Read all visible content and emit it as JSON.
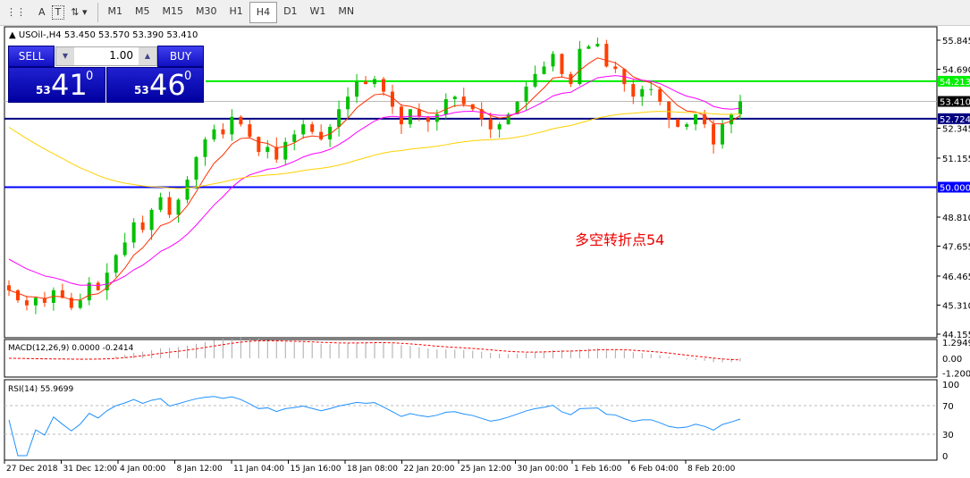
{
  "toolbar": {
    "buttons": [
      "A",
      "T"
    ],
    "timeframes": [
      "M1",
      "M5",
      "M15",
      "M30",
      "H1",
      "H4",
      "D1",
      "W1",
      "MN"
    ],
    "active": "H4"
  },
  "header": {
    "symbol_line": "USOil-,H4  53.450 53.570 53.390 53.410"
  },
  "trade_panel": {
    "sell_label": "SELL",
    "buy_label": "BUY",
    "lot": "1.00",
    "sell_big": "53",
    "sell_main": "41",
    "sell_sup": "0",
    "buy_big": "53",
    "buy_main": "46",
    "buy_sup": "0"
  },
  "annotation": "多空转折点54",
  "price_axis": [
    "55.845",
    "54.690",
    "52.345",
    "51.155",
    "48.810",
    "47.655",
    "46.465",
    "45.310",
    "44.155"
  ],
  "levels": [
    {
      "value": 54.213,
      "label": "54.213",
      "color": "#00ee00"
    },
    {
      "value": 53.41,
      "label": "53.410",
      "color": "#000000"
    },
    {
      "value": 52.724,
      "label": "52.724",
      "color": "#000080"
    },
    {
      "value": 50.0,
      "label": "50.000",
      "color": "#0000ff"
    }
  ],
  "macd": {
    "label": "MACD(12,26,9) 0.0000 -0.2414",
    "axis": [
      "1.2949",
      "0.00",
      "-1.2005"
    ]
  },
  "rsi": {
    "label": "RSI(14) 55.9699",
    "axis": [
      "100",
      "70",
      "30",
      "0"
    ]
  },
  "time_axis": [
    "27 Dec 2018",
    "31 Dec 12:00",
    "4 Jan 00:00",
    "8 Jan 12:00",
    "11 Jan 04:00",
    "15 Jan 16:00",
    "18 Jan 08:00",
    "22 Jan 20:00",
    "25 Jan 12:00",
    "30 Jan 00:00",
    "1 Feb 16:00",
    "6 Feb 04:00",
    "8 Feb 20:00"
  ],
  "colors": {
    "bull": "#00c000",
    "bear": "#ff4000",
    "ma_fast": "#ff3000",
    "ma_mid": "#ff00ff",
    "ma_slow": "#ffd000",
    "rsi": "#1e90ff",
    "macd_signal": "#ff0000"
  },
  "chart_data": {
    "type": "candlestick",
    "ylim": [
      44.155,
      55.845
    ],
    "close": [
      45.9,
      45.5,
      45.3,
      45.6,
      45.4,
      45.9,
      45.6,
      45.2,
      45.5,
      46.2,
      45.9,
      46.6,
      47.3,
      47.8,
      48.6,
      48.3,
      49.1,
      49.6,
      48.9,
      49.5,
      50.3,
      51.2,
      51.9,
      52.3,
      52.1,
      52.8,
      52.5,
      52.0,
      51.4,
      51.6,
      51.1,
      51.8,
      52.1,
      52.5,
      52.2,
      51.9,
      52.4,
      53.1,
      53.6,
      54.2,
      54.1,
      54.3,
      53.8,
      53.2,
      52.5,
      53.1,
      52.8,
      52.6,
      52.9,
      53.5,
      53.6,
      53.3,
      53.1,
      52.7,
      52.3,
      52.5,
      52.9,
      53.4,
      54.0,
      54.5,
      54.8,
      55.3,
      54.5,
      54.1,
      55.5,
      55.6,
      55.7,
      54.8,
      54.7,
      54.1,
      53.6,
      53.9,
      53.9,
      53.4,
      52.7,
      52.4,
      52.5,
      52.9,
      52.5,
      51.7,
      52.5,
      52.9,
      53.41
    ]
  }
}
